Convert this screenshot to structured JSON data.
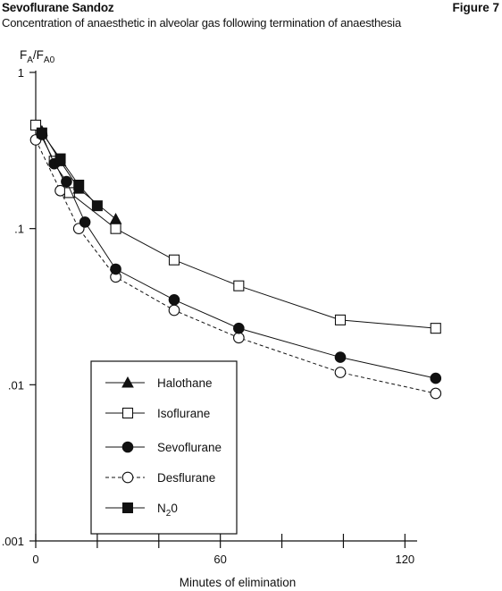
{
  "header": {
    "title": "Sevoflurane Sandoz",
    "figure": "Figure 7",
    "subtitle": "Concentration of anaesthetic in alveolar gas following termination of anaesthesia"
  },
  "chart_data": {
    "type": "line",
    "title": "Concentration of anaesthetic in alveolar gas following termination of anaesthesia",
    "ylabel_main": "F",
    "ylabel_sub1": "A",
    "ylabel_mid": "/F",
    "ylabel_sub2": "A0",
    "xlabel": "Minutes of elimination",
    "yscale": "log",
    "xlim": [
      0,
      135
    ],
    "ylim": [
      0.001,
      1
    ],
    "x_ticks": [
      0,
      60,
      120
    ],
    "x_minor_ticks": [
      20,
      40,
      80,
      100
    ],
    "y_ticks": [
      {
        "value": 1,
        "label": "1"
      },
      {
        "value": 0.1,
        "label": ".1"
      },
      {
        "value": 0.01,
        "label": ".01"
      },
      {
        "value": 0.001,
        "label": ".001"
      }
    ],
    "grid": false,
    "legend_position": "bottom-left inside",
    "series": [
      {
        "name": "Halothane",
        "marker": "filled-triangle",
        "line": "solid",
        "x": [
          2,
          8,
          14,
          26
        ],
        "y": [
          0.42,
          0.27,
          0.18,
          0.115
        ]
      },
      {
        "name": "Isoflurane",
        "marker": "open-square",
        "line": "solid",
        "x": [
          0,
          6,
          11,
          26,
          45,
          66,
          99,
          130
        ],
        "y": [
          0.46,
          0.27,
          0.17,
          0.1,
          0.063,
          0.043,
          0.026,
          0.023
        ]
      },
      {
        "name": "Sevoflurane",
        "marker": "filled-circle",
        "line": "solid",
        "x": [
          2,
          6,
          10,
          16,
          26,
          45,
          66,
          99,
          130
        ],
        "y": [
          0.4,
          0.26,
          0.2,
          0.11,
          0.055,
          0.035,
          0.023,
          0.015,
          0.011
        ]
      },
      {
        "name": "Desflurane",
        "marker": "open-circle",
        "line": "dashed",
        "x": [
          0,
          8,
          14,
          26,
          45,
          66,
          99,
          130
        ],
        "y": [
          0.37,
          0.175,
          0.1,
          0.049,
          0.03,
          0.02,
          0.012,
          0.0088
        ]
      },
      {
        "name": "N20",
        "legend_main": "N",
        "legend_sub": "2",
        "legend_tail": "0",
        "marker": "filled-square",
        "line": "solid",
        "x": [
          2,
          8,
          14,
          20
        ],
        "y": [
          0.41,
          0.28,
          0.19,
          0.14
        ]
      }
    ]
  }
}
